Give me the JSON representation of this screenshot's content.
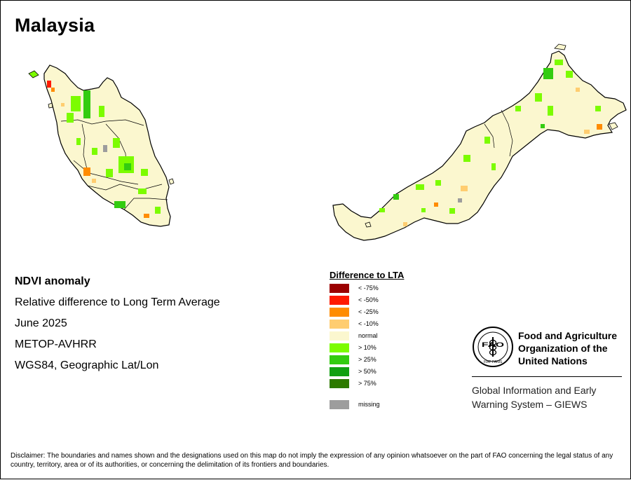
{
  "map": {
    "title": "Malaysia",
    "info_lines": [
      "NDVI anomaly",
      "Relative difference to Long Term Average",
      "June 2025",
      "METOP-AVHRR",
      "WGS84, Geographic Lat/Lon"
    ],
    "land_color": "#fbf7cf",
    "boundary_color": "#000000"
  },
  "legend": {
    "title": "Difference to LTA",
    "items": [
      {
        "label": "< -75%",
        "color": "#9b0000"
      },
      {
        "label": "< -50%",
        "color": "#ff1a00"
      },
      {
        "label": "< -25%",
        "color": "#ff8c00"
      },
      {
        "label": "< -10%",
        "color": "#ffcd70"
      },
      {
        "label": "normal",
        "color": "#fbf7cf"
      },
      {
        "label": "> 10%",
        "color": "#7cfc00"
      },
      {
        "label": "> 25%",
        "color": "#33cc10"
      },
      {
        "label": "> 50%",
        "color": "#11a010"
      },
      {
        "label": "> 75%",
        "color": "#2d7a00"
      },
      {
        "label": "missing",
        "color": "#9d9d9d"
      }
    ]
  },
  "organization": {
    "name_lines": [
      "Food and Agriculture",
      "Organization of the",
      "United Nations"
    ],
    "logo_letters": "FAO",
    "logo_motto": "FIAT PANIS",
    "system_lines": [
      "Global Information and Early",
      "Warning System – GIEWS"
    ]
  },
  "disclaimer": "Disclaimer: The boundaries and names shown and the designations used on this map do not imply the expression of any opinion whatsoever on the part of FAO concerning the legal status of any country, territory, area or of its authorities, or concerning the delimitation of its frontiers and boundaries."
}
